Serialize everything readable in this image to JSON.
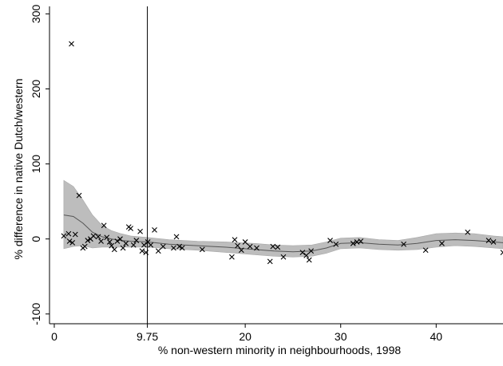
{
  "chart_data": {
    "type": "scatter",
    "xlabel": "% non-western minority in neighbourhoods, 1998",
    "ylabel": "% difference in native Dutch/western",
    "xlim": [
      -0.5,
      47
    ],
    "ylim": [
      -113,
      310
    ],
    "x_ticks": [
      {
        "value": 0,
        "label": "0"
      },
      {
        "value": 9.75,
        "label": "9.75"
      },
      {
        "value": 20,
        "label": "20"
      },
      {
        "value": 30,
        "label": "30"
      },
      {
        "value": 40,
        "label": "40"
      }
    ],
    "y_ticks": [
      {
        "value": -100,
        "label": "-100"
      },
      {
        "value": 0,
        "label": "0"
      },
      {
        "value": 100,
        "label": "100"
      },
      {
        "value": 200,
        "label": "200"
      },
      {
        "value": 300,
        "label": "300"
      }
    ],
    "reference_line_x": 9.75,
    "grid": false,
    "marker": "x",
    "colors": {
      "points": "#000000",
      "band": "#bdbdbd",
      "band_edge": "#a8a8a8",
      "fit": "#555555",
      "vline": "#000000"
    },
    "points": [
      {
        "x": 1.8,
        "y": 260
      },
      {
        "x": 2.6,
        "y": 58
      },
      {
        "x": 1.0,
        "y": 4
      },
      {
        "x": 1.5,
        "y": 7
      },
      {
        "x": 2.2,
        "y": 6
      },
      {
        "x": 1.9,
        "y": -5
      },
      {
        "x": 1.6,
        "y": -3
      },
      {
        "x": 3.0,
        "y": -12
      },
      {
        "x": 3.2,
        "y": -10
      },
      {
        "x": 3.5,
        "y": -2
      },
      {
        "x": 3.8,
        "y": 0
      },
      {
        "x": 4.1,
        "y": 4
      },
      {
        "x": 4.6,
        "y": 3
      },
      {
        "x": 4.9,
        "y": -3
      },
      {
        "x": 5.2,
        "y": 18
      },
      {
        "x": 5.5,
        "y": 2
      },
      {
        "x": 5.8,
        "y": -4
      },
      {
        "x": 6.0,
        "y": -9
      },
      {
        "x": 6.3,
        "y": -14
      },
      {
        "x": 6.6,
        "y": -3
      },
      {
        "x": 6.9,
        "y": 0
      },
      {
        "x": 7.2,
        "y": -12
      },
      {
        "x": 7.5,
        "y": -6
      },
      {
        "x": 7.8,
        "y": 16
      },
      {
        "x": 8.0,
        "y": 14
      },
      {
        "x": 8.3,
        "y": -8
      },
      {
        "x": 8.6,
        "y": -2
      },
      {
        "x": 9.0,
        "y": 10
      },
      {
        "x": 9.2,
        "y": -16
      },
      {
        "x": 9.4,
        "y": -8
      },
      {
        "x": 9.6,
        "y": -18
      },
      {
        "x": 9.8,
        "y": -4
      },
      {
        "x": 10.1,
        "y": -8
      },
      {
        "x": 10.5,
        "y": 12
      },
      {
        "x": 10.9,
        "y": -16
      },
      {
        "x": 11.4,
        "y": -10
      },
      {
        "x": 12.5,
        "y": -12
      },
      {
        "x": 12.8,
        "y": 3
      },
      {
        "x": 13.1,
        "y": -10
      },
      {
        "x": 13.4,
        "y": -12
      },
      {
        "x": 15.5,
        "y": -14
      },
      {
        "x": 18.6,
        "y": -24
      },
      {
        "x": 18.9,
        "y": -1
      },
      {
        "x": 19.2,
        "y": -9
      },
      {
        "x": 19.6,
        "y": -15
      },
      {
        "x": 20.0,
        "y": -4
      },
      {
        "x": 20.5,
        "y": -10
      },
      {
        "x": 21.2,
        "y": -12
      },
      {
        "x": 22.6,
        "y": -30
      },
      {
        "x": 22.9,
        "y": -10
      },
      {
        "x": 23.4,
        "y": -11
      },
      {
        "x": 24.0,
        "y": -24
      },
      {
        "x": 26.0,
        "y": -18
      },
      {
        "x": 26.4,
        "y": -22
      },
      {
        "x": 26.7,
        "y": -28
      },
      {
        "x": 26.9,
        "y": -16
      },
      {
        "x": 28.9,
        "y": -2
      },
      {
        "x": 29.5,
        "y": -7
      },
      {
        "x": 31.3,
        "y": -6
      },
      {
        "x": 31.7,
        "y": -4
      },
      {
        "x": 32.1,
        "y": -3
      },
      {
        "x": 36.6,
        "y": -7
      },
      {
        "x": 38.9,
        "y": -15
      },
      {
        "x": 40.6,
        "y": -6
      },
      {
        "x": 43.3,
        "y": 9
      },
      {
        "x": 45.5,
        "y": -2
      },
      {
        "x": 46.0,
        "y": -4
      },
      {
        "x": 47.0,
        "y": -18
      }
    ],
    "fit_line": [
      {
        "x": 1.0,
        "y": 32
      },
      {
        "x": 2.0,
        "y": 30
      },
      {
        "x": 3.0,
        "y": 21
      },
      {
        "x": 4.0,
        "y": 9
      },
      {
        "x": 5.0,
        "y": 3
      },
      {
        "x": 6.0,
        "y": 0
      },
      {
        "x": 7.0,
        "y": -2
      },
      {
        "x": 8.0,
        "y": -3
      },
      {
        "x": 9.75,
        "y": -4
      },
      {
        "x": 12.0,
        "y": -7
      },
      {
        "x": 15.0,
        "y": -9
      },
      {
        "x": 18.0,
        "y": -11
      },
      {
        "x": 21.0,
        "y": -14
      },
      {
        "x": 23.0,
        "y": -16
      },
      {
        "x": 25.0,
        "y": -17
      },
      {
        "x": 27.0,
        "y": -16
      },
      {
        "x": 28.5,
        "y": -12
      },
      {
        "x": 30.0,
        "y": -6
      },
      {
        "x": 32.0,
        "y": -5
      },
      {
        "x": 34.0,
        "y": -7
      },
      {
        "x": 36.0,
        "y": -8
      },
      {
        "x": 38.0,
        "y": -6
      },
      {
        "x": 40.0,
        "y": -2
      },
      {
        "x": 42.0,
        "y": -1
      },
      {
        "x": 44.0,
        "y": -2
      },
      {
        "x": 46.0,
        "y": -4
      },
      {
        "x": 47.0,
        "y": -5
      }
    ],
    "ci_band": [
      {
        "x": 1.0,
        "upper": 78,
        "lower": -13
      },
      {
        "x": 2.0,
        "upper": 70,
        "lower": -10
      },
      {
        "x": 3.0,
        "upper": 52,
        "lower": -9
      },
      {
        "x": 4.0,
        "upper": 32,
        "lower": -12
      },
      {
        "x": 5.0,
        "upper": 18,
        "lower": -11
      },
      {
        "x": 6.0,
        "upper": 11,
        "lower": -11
      },
      {
        "x": 7.0,
        "upper": 7,
        "lower": -11
      },
      {
        "x": 8.0,
        "upper": 4,
        "lower": -11
      },
      {
        "x": 9.75,
        "upper": 2,
        "lower": -11
      },
      {
        "x": 12.0,
        "upper": -1,
        "lower": -13
      },
      {
        "x": 15.0,
        "upper": -3,
        "lower": -15
      },
      {
        "x": 18.0,
        "upper": -4,
        "lower": -18
      },
      {
        "x": 21.0,
        "upper": -6,
        "lower": -21
      },
      {
        "x": 23.0,
        "upper": -8,
        "lower": -23
      },
      {
        "x": 25.0,
        "upper": -9,
        "lower": -24
      },
      {
        "x": 27.0,
        "upper": -8,
        "lower": -23
      },
      {
        "x": 28.5,
        "upper": -4,
        "lower": -19
      },
      {
        "x": 30.0,
        "upper": 1,
        "lower": -13
      },
      {
        "x": 32.0,
        "upper": 2,
        "lower": -12
      },
      {
        "x": 34.0,
        "upper": -1,
        "lower": -14
      },
      {
        "x": 36.0,
        "upper": -2,
        "lower": -15
      },
      {
        "x": 38.0,
        "upper": 2,
        "lower": -14
      },
      {
        "x": 40.0,
        "upper": 7,
        "lower": -11
      },
      {
        "x": 42.0,
        "upper": 8,
        "lower": -9
      },
      {
        "x": 44.0,
        "upper": 7,
        "lower": -10
      },
      {
        "x": 46.0,
        "upper": 4,
        "lower": -12
      },
      {
        "x": 47.0,
        "upper": 3,
        "lower": -13
      }
    ]
  }
}
